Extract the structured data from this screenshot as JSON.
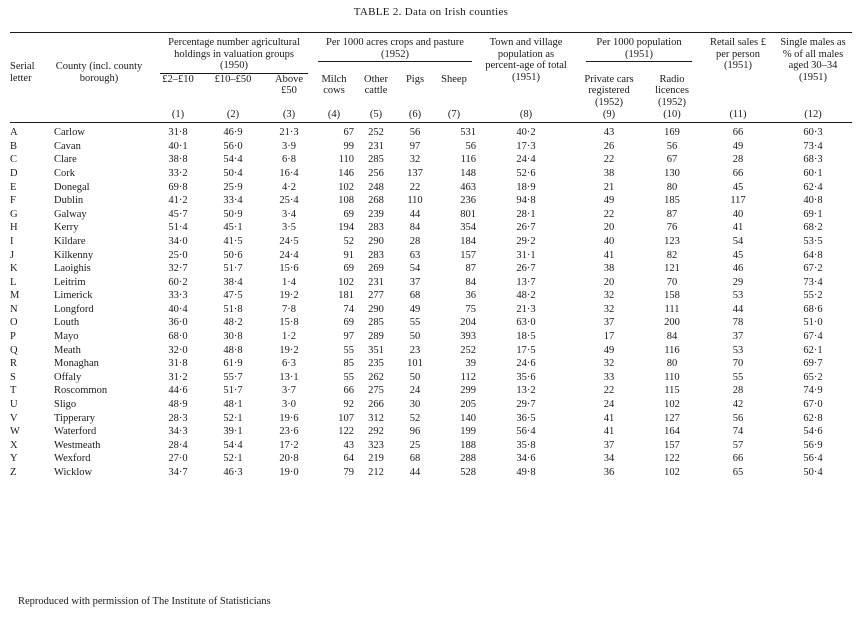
{
  "title": "TABLE 2.   Data on Irish counties",
  "caption": "Reproduced with permission of The Institute of Statisticians",
  "headers": {
    "serial": "Serial letter",
    "county": "County (incl. county borough)",
    "group_holdings": "Percentage number agricultural holdings in valuation groups (1950)",
    "group_crops": "Per 1000 acres crops and pasture (1952)",
    "town": "Town and village population as percent-age of total (1951)",
    "group_pop": "Per 1000 population (1951)",
    "retail": "Retail sales £ per person (1951)",
    "single": "Single males as % of all males aged 30–34 (1951)",
    "c1": "£2–£10",
    "c2": "£10–£50",
    "c3": "Above £50",
    "c4": "Milch cows",
    "c5": "Other cattle",
    "c6": "Pigs",
    "c7": "Sheep",
    "c9": "Private cars registered (1952)",
    "c10": "Radio licences (1952)"
  },
  "column_numbers": [
    "(1)",
    "(2)",
    "(3)",
    "(4)",
    "(5)",
    "(6)",
    "(7)",
    "(8)",
    "(9)",
    "(10)",
    "(11)",
    "(12)"
  ],
  "rows": [
    {
      "serial": "A",
      "county": "Carlow",
      "c1": "31·8",
      "c2": "46·9",
      "c3": "21·3",
      "c4": "67",
      "c5": "252",
      "c6": "56",
      "c7": "531",
      "c8": "40·2",
      "c9": "43",
      "c10": "169",
      "c11": "66",
      "c12": "60·3"
    },
    {
      "serial": "B",
      "county": "Cavan",
      "c1": "40·1",
      "c2": "56·0",
      "c3": "3·9",
      "c4": "99",
      "c5": "231",
      "c6": "97",
      "c7": "56",
      "c8": "17·3",
      "c9": "26",
      "c10": "56",
      "c11": "49",
      "c12": "73·4"
    },
    {
      "serial": "C",
      "county": "Clare",
      "c1": "38·8",
      "c2": "54·4",
      "c3": "6·8",
      "c4": "110",
      "c5": "285",
      "c6": "32",
      "c7": "116",
      "c8": "24·4",
      "c9": "22",
      "c10": "67",
      "c11": "28",
      "c12": "68·3"
    },
    {
      "serial": "D",
      "county": "Cork",
      "c1": "33·2",
      "c2": "50·4",
      "c3": "16·4",
      "c4": "146",
      "c5": "256",
      "c6": "137",
      "c7": "148",
      "c8": "52·6",
      "c9": "38",
      "c10": "130",
      "c11": "66",
      "c12": "60·1"
    },
    {
      "serial": "E",
      "county": "Donegal",
      "c1": "69·8",
      "c2": "25·9",
      "c3": "4·2",
      "c4": "102",
      "c5": "248",
      "c6": "22",
      "c7": "463",
      "c8": "18·9",
      "c9": "21",
      "c10": "80",
      "c11": "45",
      "c12": "62·4"
    },
    {
      "serial": "F",
      "county": "Dublin",
      "c1": "41·2",
      "c2": "33·4",
      "c3": "25·4",
      "c4": "108",
      "c5": "268",
      "c6": "110",
      "c7": "236",
      "c8": "94·8",
      "c9": "49",
      "c10": "185",
      "c11": "117",
      "c12": "40·8"
    },
    {
      "serial": "G",
      "county": "Galway",
      "c1": "45·7",
      "c2": "50·9",
      "c3": "3·4",
      "c4": "69",
      "c5": "239",
      "c6": "44",
      "c7": "801",
      "c8": "28·1",
      "c9": "22",
      "c10": "87",
      "c11": "40",
      "c12": "69·1"
    },
    {
      "serial": "H",
      "county": "Kerry",
      "c1": "51·4",
      "c2": "45·1",
      "c3": "3·5",
      "c4": "194",
      "c5": "283",
      "c6": "84",
      "c7": "354",
      "c8": "26·7",
      "c9": "20",
      "c10": "76",
      "c11": "41",
      "c12": "68·2"
    },
    {
      "serial": "I",
      "county": "Kildare",
      "c1": "34·0",
      "c2": "41·5",
      "c3": "24·5",
      "c4": "52",
      "c5": "290",
      "c6": "28",
      "c7": "184",
      "c8": "29·2",
      "c9": "40",
      "c10": "123",
      "c11": "54",
      "c12": "53·5"
    },
    {
      "serial": "J",
      "county": "Kilkenny",
      "c1": "25·0",
      "c2": "50·6",
      "c3": "24·4",
      "c4": "91",
      "c5": "283",
      "c6": "63",
      "c7": "157",
      "c8": "31·1",
      "c9": "41",
      "c10": "82",
      "c11": "45",
      "c12": "64·8"
    },
    {
      "serial": "K",
      "county": "Laoighis",
      "c1": "32·7",
      "c2": "51·7",
      "c3": "15·6",
      "c4": "69",
      "c5": "269",
      "c6": "54",
      "c7": "87",
      "c8": "26·7",
      "c9": "38",
      "c10": "121",
      "c11": "46",
      "c12": "67·2"
    },
    {
      "serial": "L",
      "county": "Leitrim",
      "c1": "60·2",
      "c2": "38·4",
      "c3": "1·4",
      "c4": "102",
      "c5": "231",
      "c6": "37",
      "c7": "84",
      "c8": "13·7",
      "c9": "20",
      "c10": "70",
      "c11": "29",
      "c12": "73·4"
    },
    {
      "serial": "M",
      "county": "Limerick",
      "c1": "33·3",
      "c2": "47·5",
      "c3": "19·2",
      "c4": "181",
      "c5": "277",
      "c6": "68",
      "c7": "36",
      "c8": "48·2",
      "c9": "32",
      "c10": "158",
      "c11": "53",
      "c12": "55·2"
    },
    {
      "serial": "N",
      "county": "Longford",
      "c1": "40·4",
      "c2": "51·8",
      "c3": "7·8",
      "c4": "74",
      "c5": "290",
      "c6": "49",
      "c7": "75",
      "c8": "21·3",
      "c9": "32",
      "c10": "111",
      "c11": "44",
      "c12": "68·6"
    },
    {
      "serial": "O",
      "county": "Louth",
      "c1": "36·0",
      "c2": "48·2",
      "c3": "15·8",
      "c4": "69",
      "c5": "285",
      "c6": "55",
      "c7": "204",
      "c8": "63·0",
      "c9": "37",
      "c10": "200",
      "c11": "78",
      "c12": "51·0"
    },
    {
      "serial": "P",
      "county": "Mayo",
      "c1": "68·0",
      "c2": "30·8",
      "c3": "1·2",
      "c4": "97",
      "c5": "289",
      "c6": "50",
      "c7": "393",
      "c8": "18·5",
      "c9": "17",
      "c10": "84",
      "c11": "37",
      "c12": "67·4"
    },
    {
      "serial": "Q",
      "county": "Meath",
      "c1": "32·0",
      "c2": "48·8",
      "c3": "19·2",
      "c4": "55",
      "c5": "351",
      "c6": "23",
      "c7": "252",
      "c8": "17·5",
      "c9": "49",
      "c10": "116",
      "c11": "53",
      "c12": "62·1"
    },
    {
      "serial": "R",
      "county": "Monaghan",
      "c1": "31·8",
      "c2": "61·9",
      "c3": "6·3",
      "c4": "85",
      "c5": "235",
      "c6": "101",
      "c7": "39",
      "c8": "24·6",
      "c9": "32",
      "c10": "80",
      "c11": "70",
      "c12": "69·7"
    },
    {
      "serial": "S",
      "county": "Offaly",
      "c1": "31·2",
      "c2": "55·7",
      "c3": "13·1",
      "c4": "55",
      "c5": "262",
      "c6": "50",
      "c7": "112",
      "c8": "35·6",
      "c9": "33",
      "c10": "110",
      "c11": "55",
      "c12": "65·2"
    },
    {
      "serial": "T",
      "county": "Roscommon",
      "c1": "44·6",
      "c2": "51·7",
      "c3": "3·7",
      "c4": "66",
      "c5": "275",
      "c6": "24",
      "c7": "299",
      "c8": "13·2",
      "c9": "22",
      "c10": "115",
      "c11": "28",
      "c12": "74·9"
    },
    {
      "serial": "U",
      "county": "Sligo",
      "c1": "48·9",
      "c2": "48·1",
      "c3": "3·0",
      "c4": "92",
      "c5": "266",
      "c6": "30",
      "c7": "205",
      "c8": "29·7",
      "c9": "24",
      "c10": "102",
      "c11": "42",
      "c12": "67·0"
    },
    {
      "serial": "V",
      "county": "Tipperary",
      "c1": "28·3",
      "c2": "52·1",
      "c3": "19·6",
      "c4": "107",
      "c5": "312",
      "c6": "52",
      "c7": "140",
      "c8": "36·5",
      "c9": "41",
      "c10": "127",
      "c11": "56",
      "c12": "62·8"
    },
    {
      "serial": "W",
      "county": "Waterford",
      "c1": "34·3",
      "c2": "39·1",
      "c3": "23·6",
      "c4": "122",
      "c5": "292",
      "c6": "96",
      "c7": "199",
      "c8": "56·4",
      "c9": "41",
      "c10": "164",
      "c11": "74",
      "c12": "54·6"
    },
    {
      "serial": "X",
      "county": "Westmeath",
      "c1": "28·4",
      "c2": "54·4",
      "c3": "17·2",
      "c4": "43",
      "c5": "323",
      "c6": "25",
      "c7": "188",
      "c8": "35·8",
      "c9": "37",
      "c10": "157",
      "c11": "57",
      "c12": "56·9"
    },
    {
      "serial": "Y",
      "county": "Wexford",
      "c1": "27·0",
      "c2": "52·1",
      "c3": "20·8",
      "c4": "64",
      "c5": "219",
      "c6": "68",
      "c7": "288",
      "c8": "34·6",
      "c9": "34",
      "c10": "122",
      "c11": "66",
      "c12": "56·4"
    },
    {
      "serial": "Z",
      "county": "Wicklow",
      "c1": "34·7",
      "c2": "46·3",
      "c3": "19·0",
      "c4": "79",
      "c5": "212",
      "c6": "44",
      "c7": "528",
      "c8": "49·8",
      "c9": "36",
      "c10": "102",
      "c11": "65",
      "c12": "50·4"
    }
  ]
}
